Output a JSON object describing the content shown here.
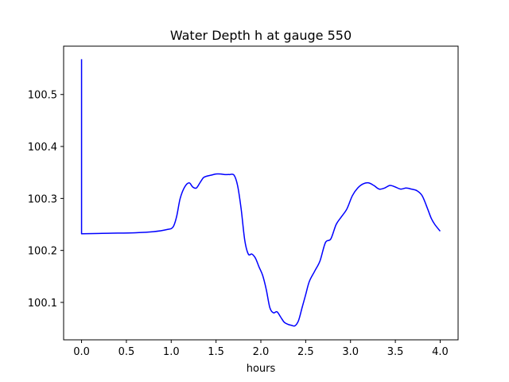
{
  "chart_data": {
    "type": "line",
    "title": "Water Depth h at gauge 550",
    "xlabel": "hours",
    "ylabel": "",
    "xlim": [
      -0.2,
      4.2
    ],
    "ylim": [
      100.028,
      100.593
    ],
    "xticks": [
      0.0,
      0.5,
      1.0,
      1.5,
      2.0,
      2.5,
      3.0,
      3.5,
      4.0
    ],
    "xtick_labels": [
      "0.0",
      "0.5",
      "1.0",
      "1.5",
      "2.0",
      "2.5",
      "3.0",
      "3.5",
      "4.0"
    ],
    "yticks": [
      100.1,
      100.2,
      100.3,
      100.4,
      100.5
    ],
    "ytick_labels": [
      "100.1",
      "100.2",
      "100.3",
      "100.4",
      "100.5"
    ],
    "grid": false,
    "legend": "none",
    "series": [
      {
        "color": "#0000ff",
        "x": [
          0.0,
          0.0,
          0.0,
          0.3,
          0.6,
          0.8,
          0.95,
          1.02,
          1.06,
          1.1,
          1.15,
          1.2,
          1.24,
          1.28,
          1.32,
          1.36,
          1.4,
          1.45,
          1.5,
          1.55,
          1.6,
          1.65,
          1.7,
          1.74,
          1.78,
          1.82,
          1.86,
          1.9,
          1.94,
          1.98,
          2.02,
          2.06,
          2.1,
          2.14,
          2.18,
          2.22,
          2.26,
          2.3,
          2.34,
          2.38,
          2.42,
          2.46,
          2.5,
          2.54,
          2.6,
          2.66,
          2.72,
          2.78,
          2.84,
          2.9,
          2.96,
          3.02,
          3.08,
          3.14,
          3.2,
          3.26,
          3.32,
          3.38,
          3.44,
          3.5,
          3.56,
          3.62,
          3.68,
          3.74,
          3.8,
          3.86,
          3.9,
          3.94,
          4.0
        ],
        "y": [
          100.568,
          100.232,
          100.232,
          100.233,
          100.234,
          100.236,
          100.24,
          100.245,
          100.265,
          100.3,
          100.322,
          100.33,
          100.322,
          100.32,
          100.33,
          100.34,
          100.343,
          100.345,
          100.347,
          100.347,
          100.346,
          100.346,
          100.345,
          100.325,
          100.28,
          100.22,
          100.193,
          100.193,
          100.185,
          100.168,
          100.152,
          100.125,
          100.09,
          100.08,
          100.082,
          100.072,
          100.062,
          100.058,
          100.056,
          100.055,
          100.065,
          100.09,
          100.115,
          100.14,
          100.16,
          100.18,
          100.215,
          100.222,
          100.25,
          100.265,
          100.28,
          100.305,
          100.32,
          100.328,
          100.33,
          100.325,
          100.318,
          100.32,
          100.325,
          100.322,
          100.318,
          100.32,
          100.318,
          100.315,
          100.305,
          100.28,
          100.262,
          100.25,
          100.237
        ]
      }
    ]
  }
}
